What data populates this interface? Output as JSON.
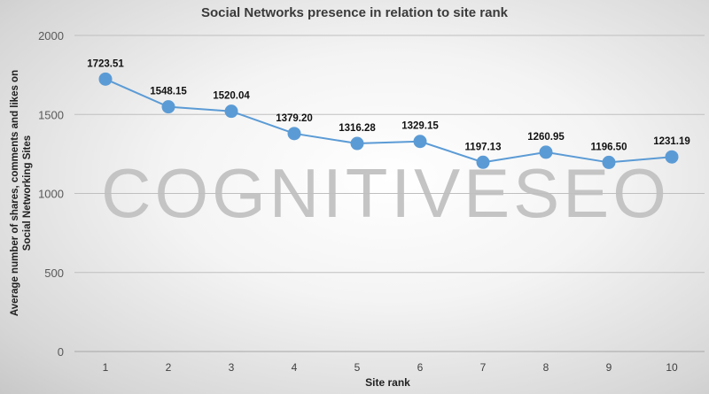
{
  "chart_data": {
    "type": "line",
    "title": "Social Networks presence in relation to site rank",
    "xlabel": "Site rank",
    "ylabel": "Average number of shares, comments and likes on Social Networking Sites",
    "categories": [
      "1",
      "2",
      "3",
      "4",
      "5",
      "6",
      "7",
      "8",
      "9",
      "10"
    ],
    "series": [
      {
        "values": [
          1723.51,
          1548.15,
          1520.04,
          1379.2,
          1316.28,
          1329.15,
          1197.13,
          1260.95,
          1196.5,
          1231.19
        ],
        "labels": [
          "1723.51",
          "1548.15",
          "1520.04",
          "1379.20",
          "1316.28",
          "1329.15",
          "1197.13",
          "1260.95",
          "1196.50",
          "1231.19"
        ]
      }
    ],
    "ylim": [
      0,
      2000
    ],
    "yticks": [
      "0",
      "500",
      "1000",
      "1500",
      "2000"
    ],
    "grid": true,
    "legend": "none",
    "colors": {
      "line": "#5b9bd5",
      "grid": "#bfbfbf",
      "watermark": "#c4c4c4"
    }
  },
  "watermark": "COGNITIVESEO"
}
